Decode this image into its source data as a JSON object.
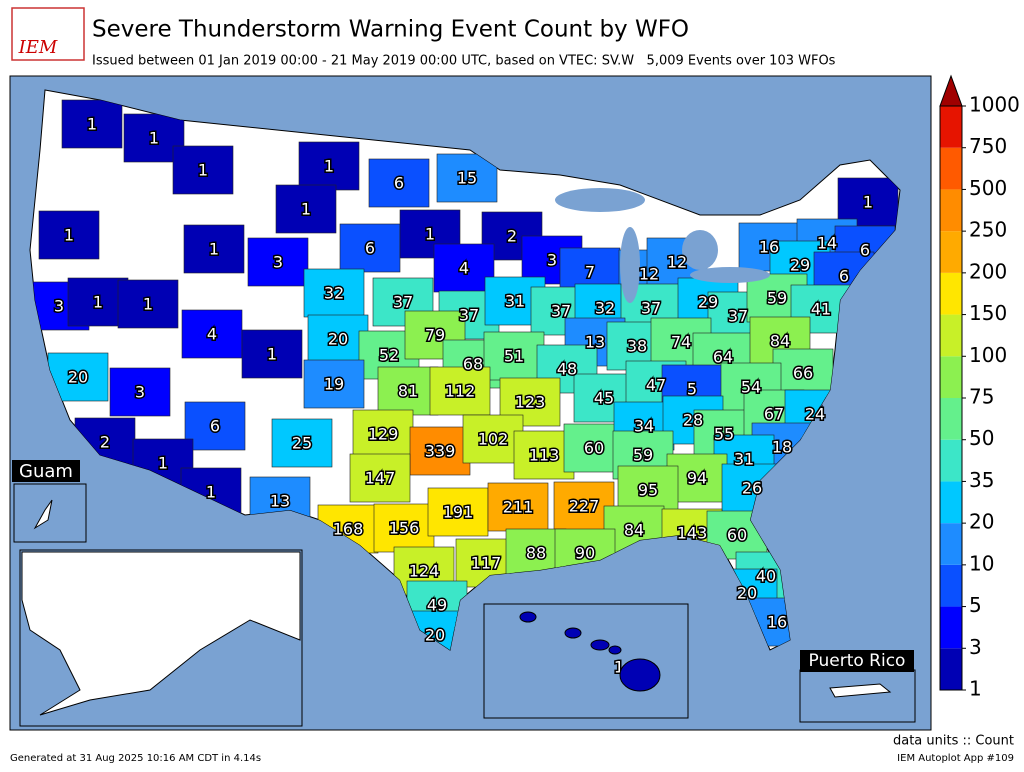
{
  "header": {
    "logo": "IEM",
    "title": "Severe Thunderstorm Warning Event Count by WFO",
    "subtitle": "Issued between 01 Jan 2019 00:00 - 21 May 2019 00:00 UTC, based on VTEC: SV.W   5,009 Events over 103 WFOs"
  },
  "insets": {
    "guam": "Guam",
    "puerto_rico": "Puerto Rico"
  },
  "colorbar": {
    "levels": [
      1,
      3,
      5,
      10,
      20,
      35,
      50,
      75,
      100,
      150,
      200,
      250,
      500,
      750,
      1000
    ],
    "colors": [
      "#0000b4",
      "#0000ff",
      "#0a50ff",
      "#1e8cff",
      "#00c8ff",
      "#3ce6c8",
      "#64f08c",
      "#8cf050",
      "#c8f028",
      "#ffe600",
      "#ffaa00",
      "#ff8c00",
      "#ff5a00",
      "#e61400"
    ],
    "extend_color": "#a00000"
  },
  "wfo_counts": [
    1,
    1,
    1,
    1,
    6,
    15,
    1,
    1,
    1,
    3,
    1,
    6,
    1,
    2,
    4,
    3,
    7,
    12,
    12,
    16,
    14,
    6,
    29,
    6,
    3,
    1,
    1,
    32,
    37,
    37,
    31,
    37,
    32,
    37,
    29,
    37,
    59,
    41,
    4,
    1,
    20,
    52,
    79,
    68,
    51,
    13,
    38,
    74,
    64,
    84,
    66,
    20,
    3,
    19,
    81,
    112,
    48,
    123,
    45,
    47,
    5,
    54,
    6,
    25,
    129,
    339,
    102,
    113,
    60,
    34,
    28,
    55,
    67,
    24,
    18,
    2,
    1,
    59,
    31,
    147,
    94,
    95,
    26,
    1,
    13,
    168,
    156,
    191,
    211,
    227,
    84,
    143,
    60,
    124,
    117,
    88,
    90,
    40,
    20,
    49,
    16,
    20,
    1
  ],
  "footer": {
    "generated": "Generated at 31 Aug 2025 10:16 AM CDT in 4.14s",
    "units": "data units :: Count",
    "app": "IEM Autoplot App #109"
  }
}
